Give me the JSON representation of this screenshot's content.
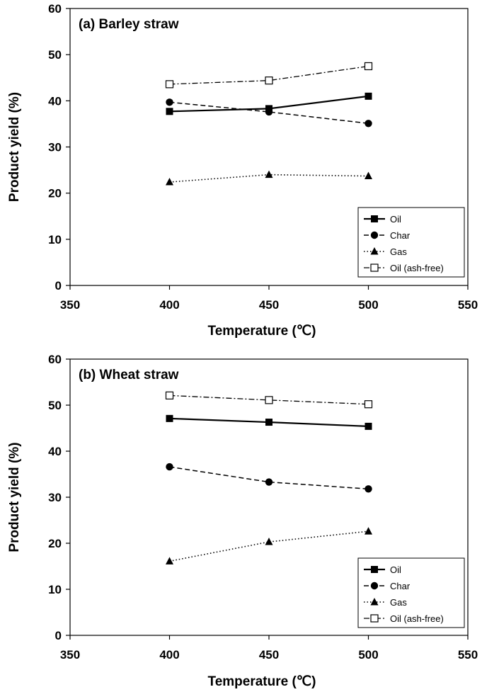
{
  "chart_data": [
    {
      "type": "line",
      "title": "(a) Barley straw",
      "xlabel": "Temperature (℃)",
      "ylabel": "Product yield (%)",
      "xlim": [
        350,
        550
      ],
      "ylim": [
        0,
        60
      ],
      "xticks": [
        350,
        400,
        450,
        500,
        550
      ],
      "yticks": [
        0,
        10,
        20,
        30,
        40,
        50,
        60
      ],
      "grid": false,
      "legend_position": "bottom-right",
      "x": [
        400,
        450,
        500
      ],
      "series": [
        {
          "name": "Oil",
          "values": [
            37.7,
            38.3,
            41.0
          ],
          "marker": "square-filled",
          "line": "solid"
        },
        {
          "name": "Char",
          "values": [
            39.7,
            37.6,
            35.1
          ],
          "marker": "circle-filled",
          "line": "dashed"
        },
        {
          "name": "Gas",
          "values": [
            22.4,
            24.0,
            23.7
          ],
          "marker": "triangle-filled",
          "line": "dotted"
        },
        {
          "name": "Oil (ash-free)",
          "values": [
            43.6,
            44.4,
            47.5
          ],
          "marker": "square-open",
          "line": "dash-dot"
        }
      ]
    },
    {
      "type": "line",
      "title": "(b) Wheat straw",
      "xlabel": "Temperature (℃)",
      "ylabel": "Product yield (%)",
      "xlim": [
        350,
        550
      ],
      "ylim": [
        0,
        60
      ],
      "xticks": [
        350,
        400,
        450,
        500,
        550
      ],
      "yticks": [
        0,
        10,
        20,
        30,
        40,
        50,
        60
      ],
      "grid": false,
      "legend_position": "bottom-right",
      "x": [
        400,
        450,
        500
      ],
      "series": [
        {
          "name": "Oil",
          "values": [
            47.1,
            46.3,
            45.4
          ],
          "marker": "square-filled",
          "line": "solid"
        },
        {
          "name": "Char",
          "values": [
            36.6,
            33.3,
            31.8
          ],
          "marker": "circle-filled",
          "line": "dashed"
        },
        {
          "name": "Gas",
          "values": [
            16.1,
            20.3,
            22.6
          ],
          "marker": "triangle-filled",
          "line": "dotted"
        },
        {
          "name": "Oil (ash-free)",
          "values": [
            52.1,
            51.1,
            50.2
          ],
          "marker": "square-open",
          "line": "dash-dot"
        }
      ]
    }
  ]
}
